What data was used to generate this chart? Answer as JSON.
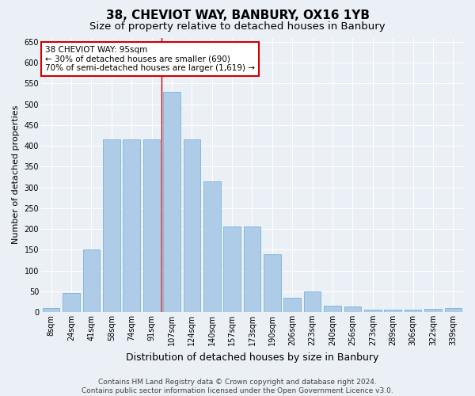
{
  "title": "38, CHEVIOT WAY, BANBURY, OX16 1YB",
  "subtitle": "Size of property relative to detached houses in Banbury",
  "xlabel": "Distribution of detached houses by size in Banbury",
  "ylabel": "Number of detached properties",
  "categories": [
    "8sqm",
    "24sqm",
    "41sqm",
    "58sqm",
    "74sqm",
    "91sqm",
    "107sqm",
    "124sqm",
    "140sqm",
    "157sqm",
    "173sqm",
    "190sqm",
    "206sqm",
    "223sqm",
    "240sqm",
    "256sqm",
    "273sqm",
    "289sqm",
    "306sqm",
    "322sqm",
    "339sqm"
  ],
  "values": [
    10,
    45,
    150,
    415,
    415,
    415,
    530,
    415,
    315,
    205,
    205,
    140,
    35,
    50,
    15,
    13,
    5,
    5,
    5,
    7,
    10
  ],
  "bar_color": "#aecce8",
  "bar_edge_color": "#6aaad4",
  "annotation_line1": "38 CHEVIOT WAY: 95sqm",
  "annotation_line2": "← 30% of detached houses are smaller (690)",
  "annotation_line3": "70% of semi-detached houses are larger (1,619) →",
  "annotation_box_facecolor": "#ffffff",
  "annotation_box_edgecolor": "#cc0000",
  "vline_x": 5.5,
  "vline_color": "#cc0000",
  "ylim": [
    0,
    660
  ],
  "yticks": [
    0,
    50,
    100,
    150,
    200,
    250,
    300,
    350,
    400,
    450,
    500,
    550,
    600,
    650
  ],
  "footer1": "Contains HM Land Registry data © Crown copyright and database right 2024.",
  "footer2": "Contains public sector information licensed under the Open Government Licence v3.0.",
  "bg_color": "#eaf0f6",
  "grid_color": "#ffffff",
  "title_fontsize": 11,
  "subtitle_fontsize": 9.5,
  "ylabel_fontsize": 8,
  "xlabel_fontsize": 9,
  "tick_fontsize": 7,
  "annotation_fontsize": 7.5,
  "footer_fontsize": 6.5
}
